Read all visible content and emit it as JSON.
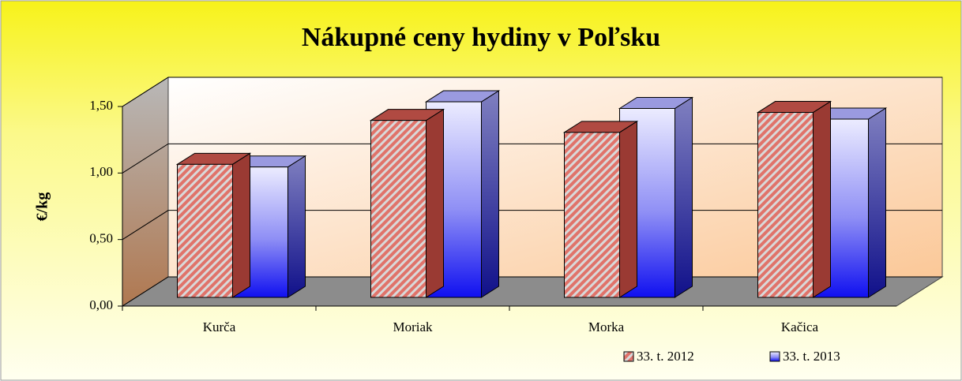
{
  "chart_data": {
    "type": "bar3d",
    "title": "Nákupné ceny hydiny v Poľsku",
    "y_label": "€/kg",
    "categories": [
      "Kurča",
      "Moriak",
      "Morka",
      "Kačica"
    ],
    "series": [
      {
        "name": "33. t. 2012",
        "color": "#e0736a",
        "values": [
          1.0,
          1.33,
          1.24,
          1.39
        ]
      },
      {
        "name": "33. t. 2013",
        "color": "#2a2af0",
        "values": [
          0.98,
          1.47,
          1.42,
          1.34
        ]
      }
    ],
    "ylim": [
      0,
      1.5
    ],
    "yticks": [
      {
        "value": 0,
        "label": "0,00"
      },
      {
        "value": 0.5,
        "label": "0,50"
      },
      {
        "value": 1,
        "label": "1,00"
      },
      {
        "value": 1.5,
        "label": "1,50"
      }
    ],
    "grid": true,
    "legend": "bottom-right"
  }
}
